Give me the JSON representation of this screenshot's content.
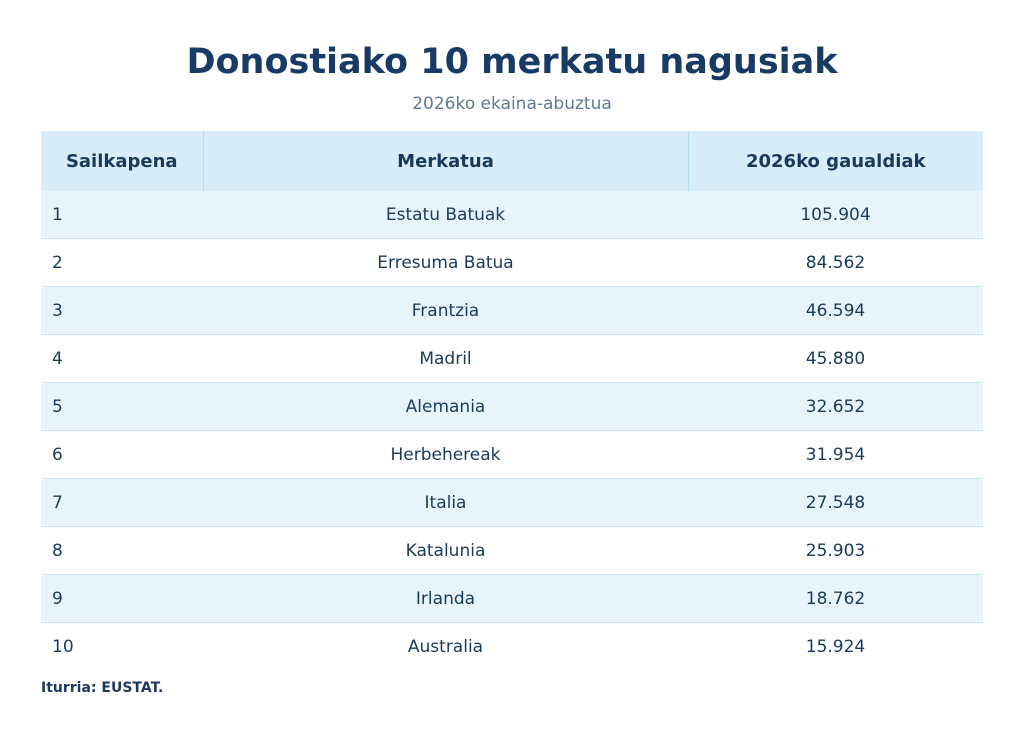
{
  "title": "Donostiako 10 merkatu nagusiak",
  "subtitle": "2026ko ekaina-abuztua",
  "colors": {
    "title": "#1a3a66",
    "header_bg": "#d9edf8",
    "row_alt_bg": "#e8f4fb",
    "text": "#1a3a5c"
  },
  "chart_data": {
    "type": "table",
    "title": "Donostiako 10 merkatu nagusiak",
    "subtitle": "2026ko ekaina-abuztua",
    "columns": [
      "Sailkapena",
      "Merkatua",
      "2026ko gaualdiak"
    ],
    "rows": [
      [
        "1",
        "Estatu Batuak",
        "105.904"
      ],
      [
        "2",
        "Erresuma Batua",
        "84.562"
      ],
      [
        "3",
        "Frantzia",
        "46.594"
      ],
      [
        "4",
        "Madril",
        "45.880"
      ],
      [
        "5",
        "Alemania",
        "32.652"
      ],
      [
        "6",
        "Herbehereak",
        "31.954"
      ],
      [
        "7",
        "Italia",
        "27.548"
      ],
      [
        "8",
        "Katalunia",
        "25.903"
      ],
      [
        "9",
        "Irlanda",
        "18.762"
      ],
      [
        "10",
        "Australia",
        "15.924"
      ]
    ]
  },
  "source": "Iturria: EUSTAT."
}
